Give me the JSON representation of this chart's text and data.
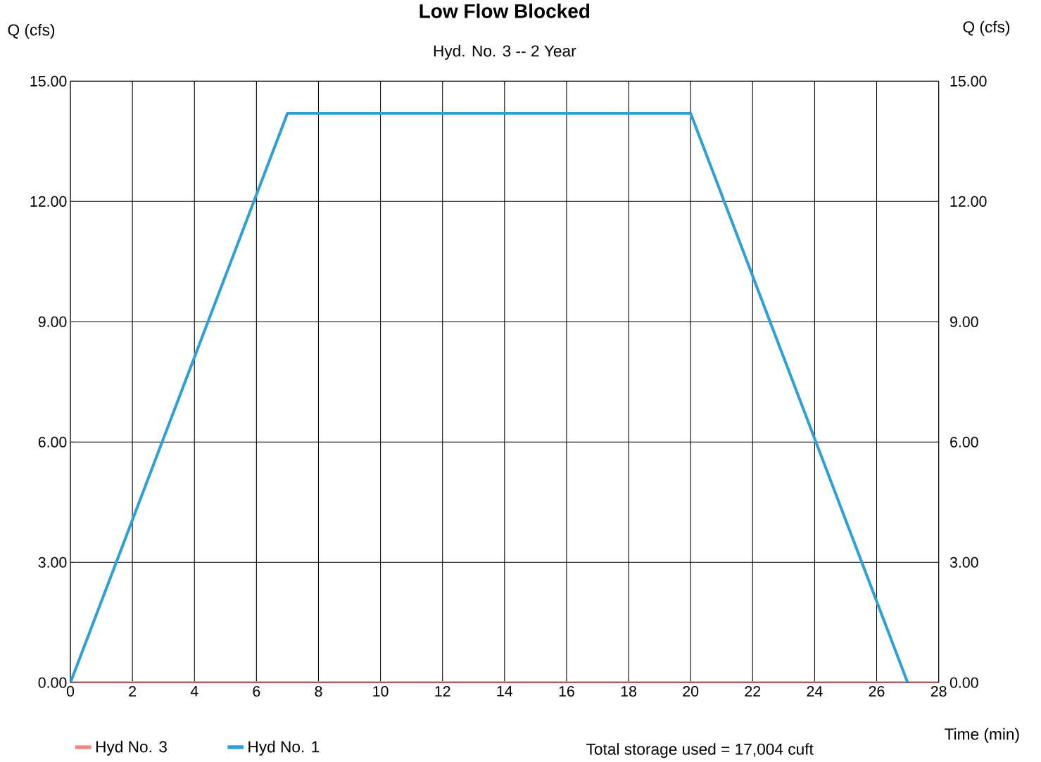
{
  "chart_data": {
    "type": "line",
    "title": "Low Flow Blocked",
    "subtitle": "Hyd. No. 3 -- 2 Year",
    "xlabel": "Time (min)",
    "ylabel": "Q (cfs)",
    "y2label": "Q (cfs)",
    "series": [
      {
        "name": "Hyd No. 3",
        "color": "#f4877f",
        "x": [
          0,
          28
        ],
        "values": [
          0,
          0
        ]
      },
      {
        "name": "Hyd No. 1",
        "color": "#2f9fd8",
        "x": [
          0,
          7,
          20,
          27
        ],
        "values": [
          0,
          14.2,
          14.2,
          0
        ]
      }
    ],
    "xlim": [
      0,
      28
    ],
    "xticks": [
      0,
      2,
      4,
      6,
      8,
      10,
      12,
      14,
      16,
      18,
      20,
      22,
      24,
      26,
      28
    ],
    "ylim": [
      0,
      15
    ],
    "yticks": [
      {
        "value": 0,
        "label": "0.00"
      },
      {
        "value": 3,
        "label": "3.00"
      },
      {
        "value": 6,
        "label": "6.00"
      },
      {
        "value": 9,
        "label": "9.00"
      },
      {
        "value": 12,
        "label": "12.00"
      },
      {
        "value": 15,
        "label": "15.00"
      }
    ],
    "y2lim": [
      0,
      15
    ],
    "y2ticks": [
      {
        "value": 0,
        "label": "0.00"
      },
      {
        "value": 3,
        "label": "3.00"
      },
      {
        "value": 6,
        "label": "6.00"
      },
      {
        "value": 9,
        "label": "9.00"
      },
      {
        "value": 12,
        "label": "12.00"
      },
      {
        "value": 15,
        "label": "15.00"
      }
    ],
    "grid": true,
    "legend": "bottom",
    "annotations": [
      "Total storage used = 17,004 cuft"
    ]
  }
}
